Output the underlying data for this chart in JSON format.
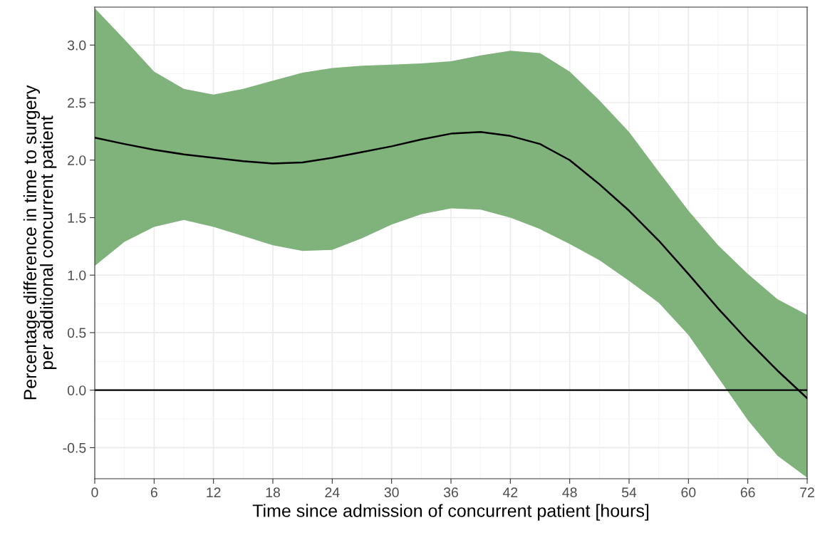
{
  "chart_data": {
    "type": "line",
    "xlabel": "Time since admission of concurrent patient [hours]",
    "ylabel": "Percentage difference in time to surgery\nper additional concurrent patient",
    "x": [
      0,
      3,
      6,
      9,
      12,
      15,
      18,
      21,
      24,
      27,
      30,
      33,
      36,
      39,
      42,
      45,
      48,
      51,
      54,
      57,
      60,
      63,
      66,
      69,
      72
    ],
    "series": [
      {
        "color": "#000000",
        "values": [
          2.195,
          2.14,
          2.09,
          2.05,
          2.02,
          1.99,
          1.97,
          1.98,
          2.02,
          2.07,
          2.12,
          2.18,
          2.23,
          2.245,
          2.21,
          2.14,
          2.0,
          1.79,
          1.56,
          1.3,
          1.01,
          0.71,
          0.43,
          0.17,
          -0.07
        ],
        "lower": [
          1.08,
          1.29,
          1.42,
          1.48,
          1.42,
          1.34,
          1.26,
          1.21,
          1.22,
          1.32,
          1.44,
          1.53,
          1.58,
          1.57,
          1.5,
          1.4,
          1.27,
          1.13,
          0.95,
          0.76,
          0.48,
          0.11,
          -0.26,
          -0.57,
          -0.76
        ],
        "upper": [
          3.32,
          3.05,
          2.77,
          2.62,
          2.57,
          2.62,
          2.69,
          2.76,
          2.8,
          2.82,
          2.83,
          2.84,
          2.86,
          2.91,
          2.95,
          2.93,
          2.77,
          2.52,
          2.245,
          1.9,
          1.56,
          1.26,
          1.01,
          0.79,
          0.655
        ]
      }
    ],
    "xlim": [
      0,
      72
    ],
    "xticks": [
      0,
      6,
      12,
      18,
      24,
      30,
      36,
      42,
      48,
      54,
      60,
      66,
      72
    ],
    "ylim": [
      -0.77,
      3.33
    ],
    "yticks": [
      {
        "value": -0.5,
        "label": "-0.5"
      },
      {
        "value": 0,
        "label": "0.0"
      },
      {
        "value": 0.5,
        "label": "0.5"
      },
      {
        "value": 1,
        "label": "1.0"
      },
      {
        "value": 1.5,
        "label": "1.5"
      },
      {
        "value": 2,
        "label": "2.0"
      },
      {
        "value": 2.5,
        "label": "2.5"
      },
      {
        "value": 3,
        "label": "3.0"
      }
    ],
    "ref_lines": [
      {
        "axis": "y",
        "value": 0,
        "color": "#000000"
      }
    ],
    "grid": true,
    "marker": "none",
    "line_style": "solid",
    "legend": false
  }
}
